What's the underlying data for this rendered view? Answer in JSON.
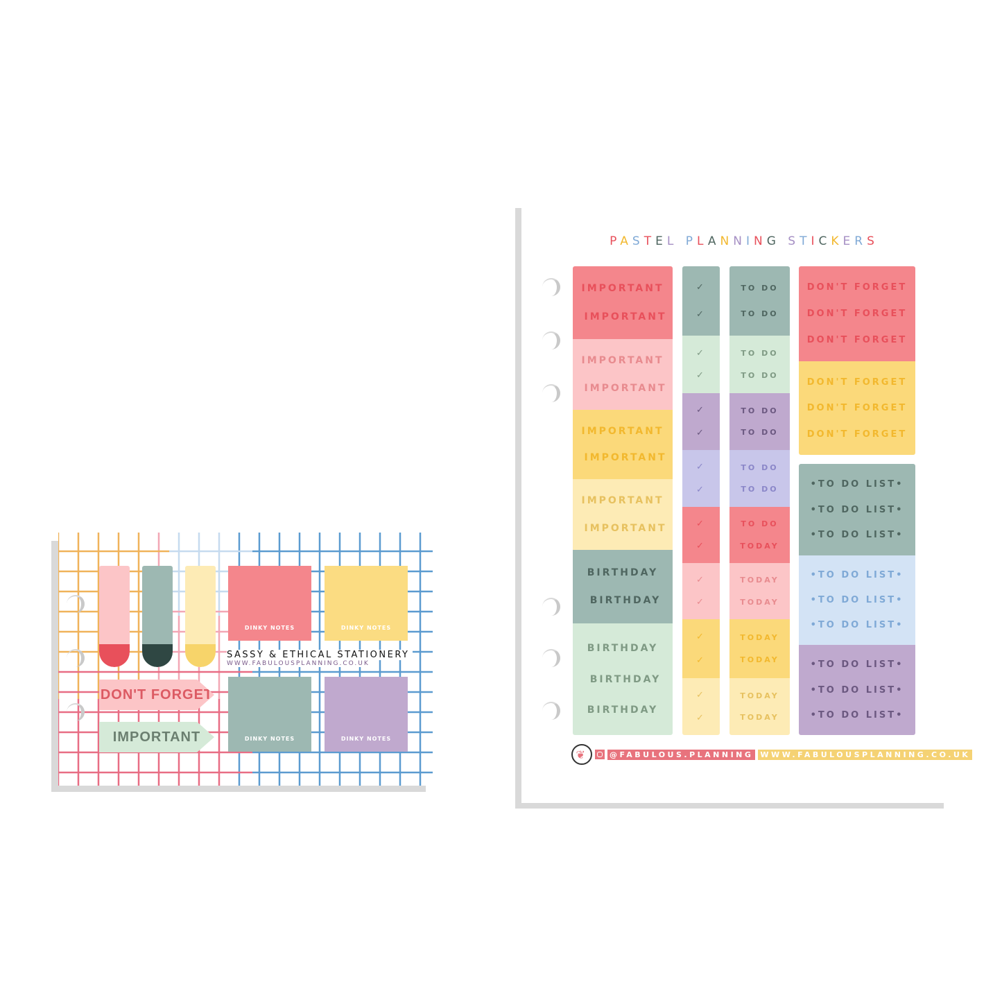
{
  "sheet": {
    "title": "PASTEL PLANNING STICKERS",
    "title_colors": [
      "#e8505b",
      "#f2b82e",
      "#7fa9d6",
      "#e8505b",
      "#4f6660",
      "#a58fc4",
      "#f2b82e",
      "#7fa9d6",
      "#e8505b",
      "#4f6660",
      "#f2b82e",
      "#a58fc4",
      "#7fa9d6",
      "#e8505b",
      "#4f6660",
      "#f2b82e",
      "#a58fc4",
      "#7fa9d6",
      "#e8505b",
      "#4f6660",
      "#f2b82e",
      "#a58fc4",
      "#7fa9d6",
      "#e8505b"
    ],
    "column1": [
      {
        "bg": "#f4868c",
        "fg": "#e8505b",
        "labels": [
          "IMPORTANT",
          "IMPORTANT"
        ]
      },
      {
        "bg": "#fcc5c7",
        "fg": "#e88b8f",
        "labels": [
          "IMPORTANT",
          "IMPORTANT"
        ]
      },
      {
        "bg": "#fbd97a",
        "fg": "#f2b82e",
        "labels": [
          "IMPORTANT",
          "IMPORTANT"
        ]
      },
      {
        "bg": "#fdebb5",
        "fg": "#e7c15f",
        "labels": [
          "IMPORTANT",
          "IMPORTANT"
        ]
      },
      {
        "bg": "#9db8b2",
        "fg": "#4f6660",
        "labels": [
          "BIRTHDAY",
          "BIRTHDAY"
        ]
      },
      {
        "bg": "#d5ead8",
        "fg": "#7f9a84",
        "labels": [
          "BIRTHDAY",
          "BIRTHDAY",
          "BIRTHDAY"
        ]
      }
    ],
    "column2": [
      {
        "bg": "#9db8b2",
        "fg": "#4f6660",
        "labels": [
          "✓",
          "✓"
        ]
      },
      {
        "bg": "#d5ead8",
        "fg": "#7f9a84",
        "labels": [
          "✓",
          "✓"
        ]
      },
      {
        "bg": "#bfa9ce",
        "fg": "#6b5880",
        "labels": [
          "✓",
          "✓"
        ]
      },
      {
        "bg": "#c8c6ea",
        "fg": "#8a86c8",
        "labels": [
          "✓",
          "✓"
        ]
      },
      {
        "bg": "#f4868c",
        "fg": "#e8505b",
        "labels": [
          "✓",
          "✓"
        ]
      },
      {
        "bg": "#fcc5c7",
        "fg": "#e88b8f",
        "labels": [
          "✓",
          "✓"
        ]
      },
      {
        "bg": "#fbd97a",
        "fg": "#f2b82e",
        "labels": [
          "✓",
          "✓"
        ]
      },
      {
        "bg": "#fdebb5",
        "fg": "#e7c15f",
        "labels": [
          "✓",
          "✓"
        ]
      }
    ],
    "column3": [
      {
        "bg": "#9db8b2",
        "fg": "#4f6660",
        "labels": [
          "TO DO",
          "TO DO"
        ]
      },
      {
        "bg": "#d5ead8",
        "fg": "#7f9a84",
        "labels": [
          "TO DO",
          "TO DO"
        ]
      },
      {
        "bg": "#bfa9ce",
        "fg": "#6b5880",
        "labels": [
          "TO DO",
          "TO DO"
        ]
      },
      {
        "bg": "#c8c6ea",
        "fg": "#8a86c8",
        "labels": [
          "TO DO",
          "TO DO"
        ]
      },
      {
        "bg": "#f4868c",
        "fg": "#e8505b",
        "labels": [
          "TO DO",
          "TODAY"
        ]
      },
      {
        "bg": "#fcc5c7",
        "fg": "#e88b8f",
        "labels": [
          "TODAY",
          "TODAY"
        ]
      },
      {
        "bg": "#fbd97a",
        "fg": "#f2b82e",
        "labels": [
          "TODAY",
          "TODAY"
        ]
      },
      {
        "bg": "#fdebb5",
        "fg": "#e7c15f",
        "labels": [
          "TODAY",
          "TODAY"
        ]
      }
    ],
    "column4a": [
      {
        "bg": "#f4868c",
        "fg": "#e8505b",
        "labels": [
          "DON'T FORGET",
          "DON'T FORGET",
          "DON'T FORGET"
        ]
      },
      {
        "bg": "#fbd97a",
        "fg": "#f2b82e",
        "labels": [
          "DON'T FORGET",
          "DON'T FORGET",
          "DON'T FORGET"
        ]
      }
    ],
    "column4b": [
      {
        "bg": "#9db8b2",
        "fg": "#4f6660",
        "labels": [
          "•TO DO LIST•",
          "•TO DO LIST•",
          "•TO DO LIST•"
        ]
      },
      {
        "bg": "#d3e3f5",
        "fg": "#7fa9d6",
        "labels": [
          "•TO DO LIST•",
          "•TO DO LIST•",
          "•TO DO LIST•"
        ]
      },
      {
        "bg": "#bfa9ce",
        "fg": "#6b5880",
        "labels": [
          "•TO DO LIST•",
          "•TO DO LIST•",
          "•TO DO LIST•"
        ]
      }
    ],
    "footer": {
      "instagram": "@FABULOUS.PLANNING",
      "website": "WWW.FABULOUSPLANNING.CO.UK",
      "instagram_color": "#e8737d",
      "website_color": "#f5d274"
    }
  },
  "card": {
    "tagline": "SASSY & ETHICAL STATIONERY",
    "website": "WWW.FABULOUSPLANNING.CO.UK",
    "tabs": [
      {
        "bg": "#fcc5c7",
        "end": "#e8505b"
      },
      {
        "bg": "#9db8b2",
        "end": "#2f4743"
      },
      {
        "bg": "#fdebb5",
        "end": "#f7d46a"
      }
    ],
    "notes": [
      {
        "label": "DINKY NOTES",
        "bg": "#f4868c"
      },
      {
        "label": "DINKY NOTES",
        "bg": "#fbdc82"
      },
      {
        "label": "DINKY NOTES",
        "bg": "#9db8b2"
      },
      {
        "label": "DINKY NOTES",
        "bg": "#c0a9ce"
      }
    ],
    "flags": [
      {
        "label": "DON'T FORGET",
        "bg": "#fcc5c7",
        "fg": "#dc5a63"
      },
      {
        "label": "IMPORTANT",
        "bg": "#d5ead8",
        "fg": "#6b7f70"
      }
    ]
  }
}
